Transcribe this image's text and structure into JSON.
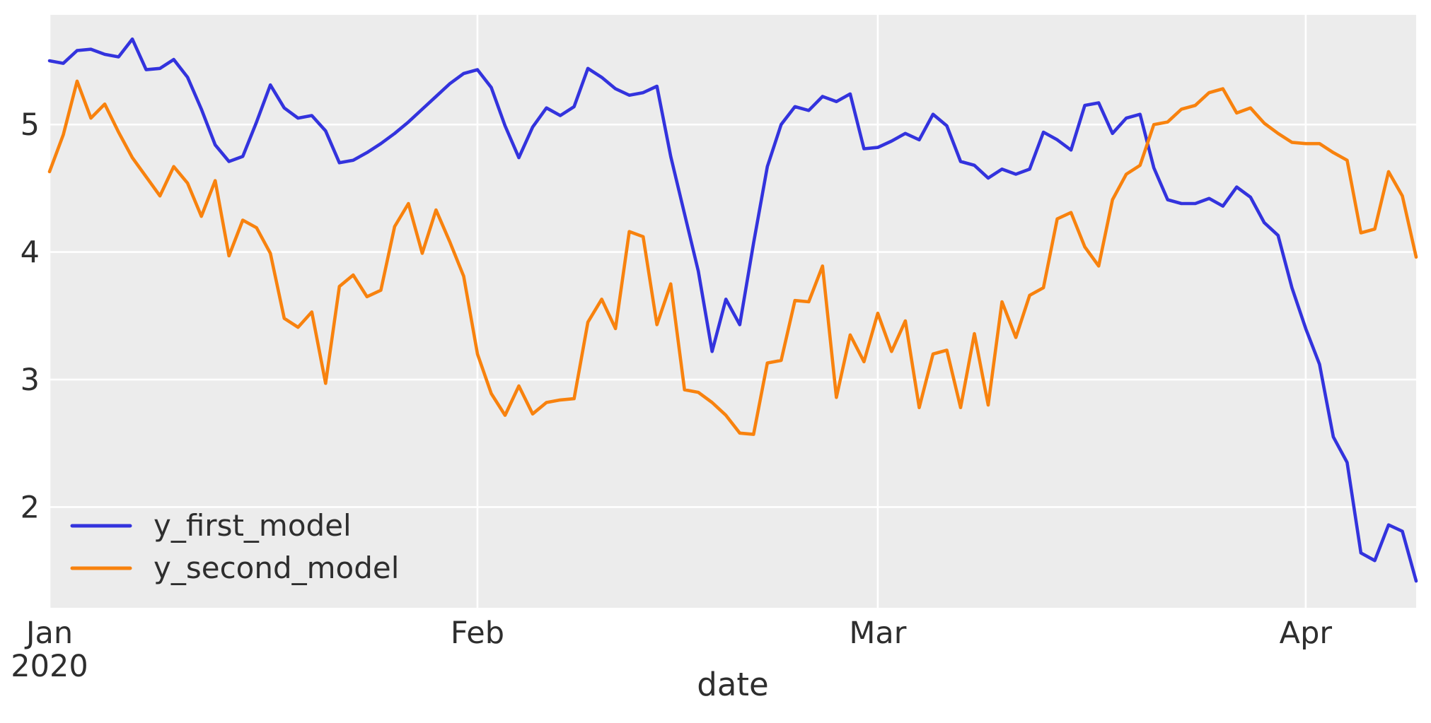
{
  "figure": {
    "background": "#ffffff",
    "plot_background": "#ececec",
    "grid_color": "#ffffff",
    "tick_color": "#2e2e2e"
  },
  "xlabel": "date",
  "legend": {
    "items": [
      {
        "label": "y_first_model",
        "color": "#3333dd"
      },
      {
        "label": "y_second_model",
        "color": "#f8820e"
      }
    ]
  },
  "chart_data": {
    "type": "line",
    "title": "",
    "xlabel": "date",
    "ylabel": "",
    "grid": true,
    "legend_position": "lower-left",
    "x_unit": "daily dates from Jan 1 2020 to Apr 9 2020",
    "xlim": [
      0,
      99
    ],
    "ylim": [
      1.21,
      5.86
    ],
    "y_ticks": [
      2,
      3,
      4,
      5
    ],
    "x_ticks": [
      {
        "day": 0,
        "label": "Jan",
        "sublabel": "2020"
      },
      {
        "day": 31,
        "label": "Feb",
        "sublabel": ""
      },
      {
        "day": 60,
        "label": "Mar",
        "sublabel": ""
      },
      {
        "day": 91,
        "label": "Apr",
        "sublabel": ""
      }
    ],
    "series": [
      {
        "name": "y_first_model",
        "color": "#3333dd",
        "values": [
          5.5,
          5.48,
          5.58,
          5.59,
          5.55,
          5.53,
          5.67,
          5.43,
          5.44,
          5.51,
          5.37,
          5.12,
          4.84,
          4.71,
          4.75,
          5.02,
          5.31,
          5.13,
          5.05,
          5.07,
          4.95,
          4.7,
          4.72,
          4.78,
          4.85,
          4.93,
          5.02,
          5.12,
          5.22,
          5.32,
          5.4,
          5.43,
          5.29,
          4.99,
          4.74,
          4.98,
          5.13,
          5.07,
          5.14,
          5.44,
          5.37,
          5.28,
          5.23,
          5.25,
          5.3,
          4.75,
          4.3,
          3.85,
          3.22,
          3.63,
          3.43,
          4.07,
          4.67,
          5.0,
          5.14,
          5.11,
          5.22,
          5.18,
          5.24,
          4.81,
          4.82,
          4.87,
          4.93,
          4.88,
          5.08,
          4.99,
          4.71,
          4.68,
          4.58,
          4.65,
          4.61,
          4.65,
          4.94,
          4.88,
          4.8,
          5.15,
          5.17,
          4.93,
          5.05,
          5.08,
          4.66,
          4.41,
          4.38,
          4.38,
          4.42,
          4.36,
          4.51,
          4.43,
          4.23,
          4.13,
          3.72,
          3.4,
          3.12,
          2.55,
          2.35,
          1.64,
          1.58,
          1.86,
          1.81,
          1.42
        ]
      },
      {
        "name": "y_second_model",
        "color": "#f8820e",
        "values": [
          4.63,
          4.92,
          5.34,
          5.05,
          5.16,
          4.94,
          4.74,
          4.59,
          4.44,
          4.67,
          4.54,
          4.28,
          4.56,
          3.97,
          4.25,
          4.19,
          3.99,
          3.48,
          3.41,
          3.53,
          2.97,
          3.73,
          3.82,
          3.65,
          3.7,
          4.2,
          4.38,
          3.99,
          4.33,
          4.08,
          3.81,
          3.2,
          2.89,
          2.72,
          2.95,
          2.73,
          2.82,
          2.84,
          2.85,
          3.45,
          3.63,
          3.4,
          4.16,
          4.12,
          3.43,
          3.75,
          2.92,
          2.9,
          2.82,
          2.72,
          2.58,
          2.57,
          3.13,
          3.15,
          3.62,
          3.61,
          3.89,
          2.86,
          3.35,
          3.14,
          3.52,
          3.22,
          3.46,
          2.78,
          3.2,
          3.23,
          2.78,
          3.36,
          2.8,
          3.61,
          3.33,
          3.66,
          3.72,
          4.26,
          4.31,
          4.04,
          3.89,
          4.41,
          4.61,
          4.68,
          5.0,
          5.02,
          5.12,
          5.15,
          5.25,
          5.28,
          5.09,
          5.13,
          5.01,
          4.93,
          4.86,
          4.85,
          4.85,
          4.78,
          4.72,
          4.15,
          4.18,
          4.63,
          4.44,
          3.96
        ]
      }
    ]
  }
}
